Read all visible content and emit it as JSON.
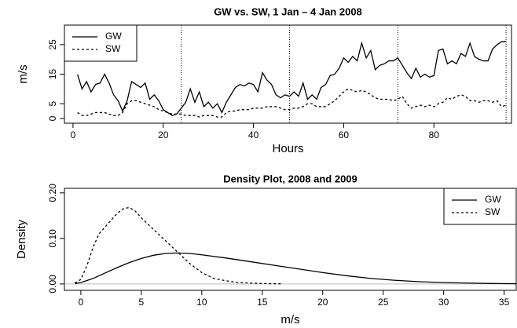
{
  "chart_data": [
    {
      "type": "line",
      "title": "GW vs. SW, 1 Jan – 4 Jan 2008",
      "x_label": "Hours",
      "y_label": "m/s",
      "x": [
        1,
        2,
        3,
        4,
        5,
        6,
        7,
        8,
        9,
        10,
        11,
        12,
        13,
        14,
        15,
        16,
        17,
        18,
        19,
        20,
        21,
        22,
        23,
        24,
        25,
        26,
        27,
        28,
        29,
        30,
        31,
        32,
        33,
        34,
        35,
        36,
        37,
        38,
        39,
        40,
        41,
        42,
        43,
        44,
        45,
        46,
        47,
        48,
        49,
        50,
        51,
        52,
        53,
        54,
        55,
        56,
        57,
        58,
        59,
        60,
        61,
        62,
        63,
        64,
        65,
        66,
        67,
        68,
        69,
        70,
        71,
        72,
        73,
        74,
        75,
        76,
        77,
        78,
        79,
        80,
        81,
        82,
        83,
        84,
        85,
        86,
        87,
        88,
        89,
        90,
        91,
        92,
        93,
        94,
        95,
        96
      ],
      "series": [
        {
          "name": "GW",
          "color": "#000000",
          "dash": "solid",
          "values": [
            14.9,
            10,
            12.5,
            9,
            11.5,
            12,
            15,
            12,
            8,
            6,
            2.5,
            6,
            12.5,
            11.5,
            10.5,
            12,
            6.5,
            8,
            6,
            3,
            2,
            1,
            1.5,
            3.5,
            5.5,
            10,
            5.5,
            9,
            4,
            5.5,
            3.5,
            5,
            2,
            5.5,
            8,
            10.5,
            11.5,
            11,
            12,
            11.5,
            9,
            15.5,
            13,
            11.5,
            8,
            7,
            8,
            7.5,
            9,
            7.5,
            12,
            6.5,
            8,
            6.5,
            10.5,
            11.5,
            14.5,
            15,
            17,
            20.5,
            19,
            21,
            19.5,
            25.5,
            20.5,
            23,
            16.5,
            18,
            18.5,
            19.5,
            19.5,
            20.5,
            18,
            15.5,
            13.5,
            17,
            14,
            15,
            14,
            14.5,
            23,
            23.5,
            18.5,
            19.5,
            18.5,
            22,
            21,
            25.5,
            21,
            20,
            19.5,
            19.5,
            23.5,
            25,
            26,
            26
          ]
        },
        {
          "name": "SW",
          "color": "#000000",
          "dash": "dashed",
          "values": [
            2,
            1,
            1,
            1.5,
            2,
            2,
            2,
            1.5,
            1,
            1,
            2,
            5,
            6,
            6,
            5.5,
            5,
            4.5,
            4,
            3,
            2.5,
            2,
            1.5,
            1.5,
            1.5,
            1,
            1,
            1,
            0.5,
            1,
            1,
            1,
            0.5,
            0.5,
            2,
            2.5,
            2.5,
            3,
            3,
            3,
            3.5,
            3.5,
            3.5,
            4,
            4,
            4,
            3.5,
            3,
            3,
            3.5,
            3.5,
            4,
            5,
            5,
            4,
            4,
            4,
            5,
            6,
            7.5,
            9,
            10,
            9.5,
            9,
            9.5,
            9,
            8,
            7,
            6.5,
            6.5,
            6.5,
            6,
            6.5,
            7.5,
            5,
            3.5,
            4,
            4.5,
            4,
            4.5,
            4,
            5,
            5.5,
            7,
            6.5,
            7.5,
            8,
            7.5,
            6,
            6,
            5.5,
            6,
            6,
            5.5,
            6,
            4,
            4.5
          ]
        }
      ],
      "xlim": [
        -1.9,
        97.2
      ],
      "ylim": [
        -1.6,
        31.6
      ],
      "xticks": [
        0,
        20,
        40,
        60,
        80
      ],
      "yticks": [
        0,
        5,
        15,
        25
      ],
      "vlines": [
        24,
        48,
        72,
        96
      ],
      "legend": "top-left"
    },
    {
      "type": "line",
      "title": "Density Plot, 2008 and 2009",
      "x_label": "m/s",
      "y_label": "Density",
      "series": [
        {
          "name": "GW",
          "color": "#000000",
          "dash": "solid",
          "x": [
            -0.5,
            0,
            1,
            2,
            3,
            4,
            5,
            6,
            7,
            8,
            9,
            10,
            12,
            14,
            16,
            18,
            20,
            22,
            24,
            26,
            28,
            30,
            32,
            34,
            36
          ],
          "values": [
            0.001,
            0.003,
            0.012,
            0.024,
            0.036,
            0.047,
            0.056,
            0.063,
            0.067,
            0.068,
            0.067,
            0.064,
            0.057,
            0.049,
            0.041,
            0.033,
            0.025,
            0.018,
            0.012,
            0.008,
            0.005,
            0.003,
            0.002,
            0.001,
            0.0005
          ]
        },
        {
          "name": "SW",
          "color": "#000000",
          "dash": "dashed",
          "x": [
            -0.5,
            0,
            0.5,
            1,
            1.5,
            2,
            2.5,
            3,
            3.5,
            4,
            4.5,
            5,
            6,
            7,
            8,
            9,
            10,
            11,
            12,
            13,
            14,
            15,
            16,
            16.7
          ],
          "values": [
            0.002,
            0.01,
            0.04,
            0.08,
            0.11,
            0.125,
            0.14,
            0.155,
            0.165,
            0.168,
            0.16,
            0.145,
            0.12,
            0.095,
            0.07,
            0.045,
            0.025,
            0.012,
            0.007,
            0.003,
            0.002,
            0.001,
            0.0005,
            0.0003
          ]
        }
      ],
      "xlim": [
        -1.36,
        36
      ],
      "ylim": [
        -0.014,
        0.21
      ],
      "xticks": [
        0,
        5,
        10,
        15,
        20,
        25,
        30,
        35
      ],
      "yticks": [
        {
          "value": 0,
          "label": "0.00"
        },
        {
          "value": 0.1,
          "label": "0.10"
        },
        {
          "value": 0.2,
          "label": "0.20"
        }
      ],
      "zero_line": true,
      "legend": "top-right"
    }
  ]
}
